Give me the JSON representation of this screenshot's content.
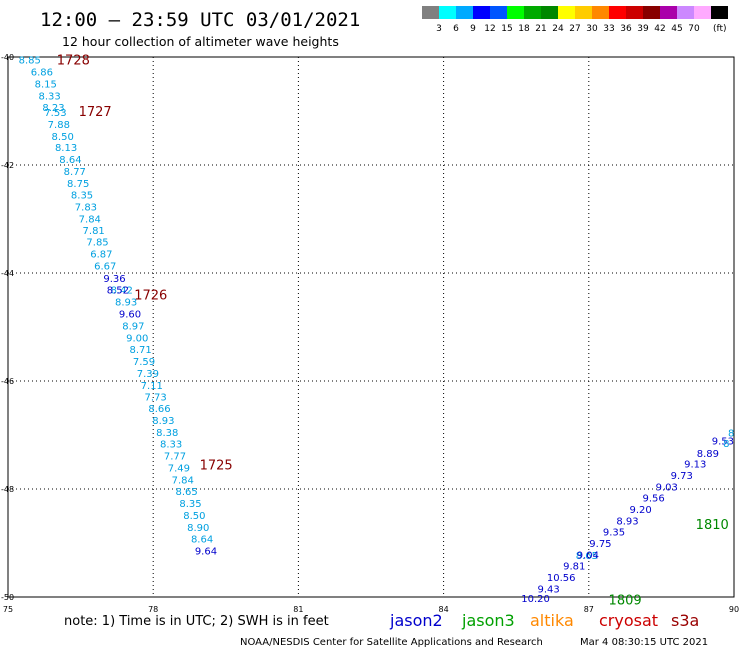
{
  "chart_data": {
    "type": "scatter",
    "title": "12:00 — 23:59 UTC 03/01/2021",
    "subtitle": "12 hour collection of altimeter wave heights",
    "xlim": [
      75,
      90
    ],
    "ylim": [
      -50,
      -40
    ],
    "x_ticks": [
      "75",
      "78",
      "81",
      "84",
      "87",
      "90"
    ],
    "y_ticks": [
      "-40",
      "-42",
      "-44",
      "-46",
      "-48",
      "-50"
    ],
    "grid": true,
    "legend": {
      "placement": "top-right",
      "labels": [
        "3",
        "6",
        "9",
        "12",
        "15",
        "18",
        "21",
        "24",
        "27",
        "30",
        "33",
        "36",
        "39",
        "42",
        "45",
        "70"
      ],
      "unit": "(ft)",
      "colors": [
        "#808080",
        "#00ffff",
        "#00aaff",
        "#0000ff",
        "#0055ff",
        "#00ff00",
        "#00aa00",
        "#008800",
        "#ffff00",
        "#ffcc00",
        "#ff8800",
        "#ff0000",
        "#cc0000",
        "#880000",
        "#aa00aa",
        "#cc88ff",
        "#ffaaff",
        "#000000"
      ]
    },
    "series": [
      {
        "name": "cryosat",
        "color": "#00a0e0",
        "points": [
          {
            "x": 75.45,
            "y": -40.05,
            "v": "8.85"
          },
          {
            "x": 75.7,
            "y": -40.27,
            "v": "6.86"
          },
          {
            "x": 75.78,
            "y": -40.49,
            "v": "8.15"
          },
          {
            "x": 75.86,
            "y": -40.71,
            "v": "8.33"
          },
          {
            "x": 75.94,
            "y": -40.93,
            "v": "8.23"
          },
          {
            "x": 75.98,
            "y": -41.02,
            "v": "7.53"
          },
          {
            "x": 76.05,
            "y": -41.24,
            "v": "7.88"
          },
          {
            "x": 76.13,
            "y": -41.46,
            "v": "8.50"
          },
          {
            "x": 76.2,
            "y": -41.67,
            "v": "8.13"
          },
          {
            "x": 76.29,
            "y": -41.89,
            "v": "8.64"
          },
          {
            "x": 76.38,
            "y": -42.11,
            "v": "8.77"
          },
          {
            "x": 76.45,
            "y": -42.33,
            "v": "8.75"
          },
          {
            "x": 76.53,
            "y": -42.55,
            "v": "8.35"
          },
          {
            "x": 76.61,
            "y": -42.77,
            "v": "7.83"
          },
          {
            "x": 76.69,
            "y": -42.99,
            "v": "7.84"
          },
          {
            "x": 76.77,
            "y": -43.2,
            "v": "7.81"
          },
          {
            "x": 76.85,
            "y": -43.42,
            "v": "7.85"
          },
          {
            "x": 76.93,
            "y": -43.64,
            "v": "6.87"
          },
          {
            "x": 77.01,
            "y": -43.86,
            "v": "6.67"
          },
          {
            "x": 77.35,
            "y": -44.31,
            "v": "8.42"
          },
          {
            "x": 77.44,
            "y": -44.53,
            "v": "8.93"
          },
          {
            "x": 77.59,
            "y": -44.97,
            "v": "8.97"
          },
          {
            "x": 77.67,
            "y": -45.19,
            "v": "9.00"
          },
          {
            "x": 77.74,
            "y": -45.41,
            "v": "8.71"
          },
          {
            "x": 77.81,
            "y": -45.63,
            "v": "7.59"
          },
          {
            "x": 77.89,
            "y": -45.85,
            "v": "7.39"
          },
          {
            "x": 77.97,
            "y": -46.07,
            "v": "7.11"
          },
          {
            "x": 78.05,
            "y": -46.29,
            "v": "7.73"
          },
          {
            "x": 78.13,
            "y": -46.5,
            "v": "8.66"
          },
          {
            "x": 78.21,
            "y": -46.72,
            "v": "8.93"
          },
          {
            "x": 78.29,
            "y": -46.94,
            "v": "8.38"
          },
          {
            "x": 78.37,
            "y": -47.16,
            "v": "8.33"
          },
          {
            "x": 78.45,
            "y": -47.38,
            "v": "7.77"
          },
          {
            "x": 78.53,
            "y": -47.6,
            "v": "7.49"
          },
          {
            "x": 78.61,
            "y": -47.82,
            "v": "7.84"
          },
          {
            "x": 78.69,
            "y": -48.04,
            "v": "8.65"
          },
          {
            "x": 78.77,
            "y": -48.26,
            "v": "8.35"
          },
          {
            "x": 78.85,
            "y": -48.48,
            "v": "8.50"
          },
          {
            "x": 78.93,
            "y": -48.7,
            "v": "8.90"
          },
          {
            "x": 79.01,
            "y": -48.92,
            "v": "8.64"
          },
          {
            "x": 86.96,
            "y": -49.22,
            "v": "8.65"
          }
        ]
      },
      {
        "name": "jason2",
        "color": "#0000cc",
        "points": [
          {
            "x": 77.2,
            "y": -44.09,
            "v": "9.36"
          },
          {
            "x": 77.27,
            "y": -44.31,
            "v": "8.52"
          },
          {
            "x": 77.52,
            "y": -44.75,
            "v": "9.60"
          },
          {
            "x": 79.09,
            "y": -49.14,
            "v": "9.64"
          },
          {
            "x": 89.77,
            "y": -47.1,
            "v": "9.53"
          },
          {
            "x": 89.46,
            "y": -47.33,
            "v": "8.89"
          },
          {
            "x": 89.2,
            "y": -47.53,
            "v": "9.13"
          },
          {
            "x": 88.92,
            "y": -47.74,
            "v": "9.73"
          },
          {
            "x": 88.61,
            "y": -47.95,
            "v": "9.03"
          },
          {
            "x": 88.34,
            "y": -48.16,
            "v": "9.56"
          },
          {
            "x": 88.07,
            "y": -48.37,
            "v": "9.20"
          },
          {
            "x": 87.8,
            "y": -48.58,
            "v": "8.93"
          },
          {
            "x": 87.52,
            "y": -48.79,
            "v": "9.35"
          },
          {
            "x": 87.24,
            "y": -49.0,
            "v": "9.75"
          },
          {
            "x": 86.98,
            "y": -49.21,
            "v": "9.04"
          },
          {
            "x": 86.7,
            "y": -49.42,
            "v": "9.81"
          },
          {
            "x": 86.43,
            "y": -49.63,
            "v": "10.56"
          },
          {
            "x": 86.17,
            "y": -49.84,
            "v": "9.43"
          },
          {
            "x": 85.9,
            "y": -50.02,
            "v": "10.20"
          }
        ]
      }
    ],
    "annotations": [
      {
        "x": 76.35,
        "y": -40.05,
        "text": "1728",
        "color": "#880000"
      },
      {
        "x": 76.8,
        "y": -41.0,
        "text": "1727",
        "color": "#880000"
      },
      {
        "x": 77.95,
        "y": -44.4,
        "text": "1726",
        "color": "#880000"
      },
      {
        "x": 79.3,
        "y": -47.55,
        "text": "1725",
        "color": "#880000"
      },
      {
        "x": 89.55,
        "y": -48.65,
        "text": "1810",
        "color": "#008800"
      },
      {
        "x": 87.75,
        "y": -50.05,
        "text": "1809",
        "color": "#008800"
      }
    ],
    "edge_values": [
      {
        "x": 90.0,
        "y": -46.95,
        "v": "8"
      },
      {
        "x": 89.9,
        "y": -47.15,
        "v": "8"
      }
    ]
  },
  "note": "note: 1) Time is in UTC; 2) SWH is in feet",
  "satellites": [
    {
      "name": "jason2",
      "color": "#0000cc"
    },
    {
      "name": "jason3",
      "color": "#00a000"
    },
    {
      "name": "altika",
      "color": "#ff8800"
    },
    {
      "name": "cryosat",
      "color": "#cc0000"
    },
    {
      "name": "s3a",
      "color": "#990000"
    }
  ],
  "credit": "NOAA/NESDIS Center for Satellite Applications and Research",
  "timestamp": "Mar  4 08:30:15 UTC 2021"
}
